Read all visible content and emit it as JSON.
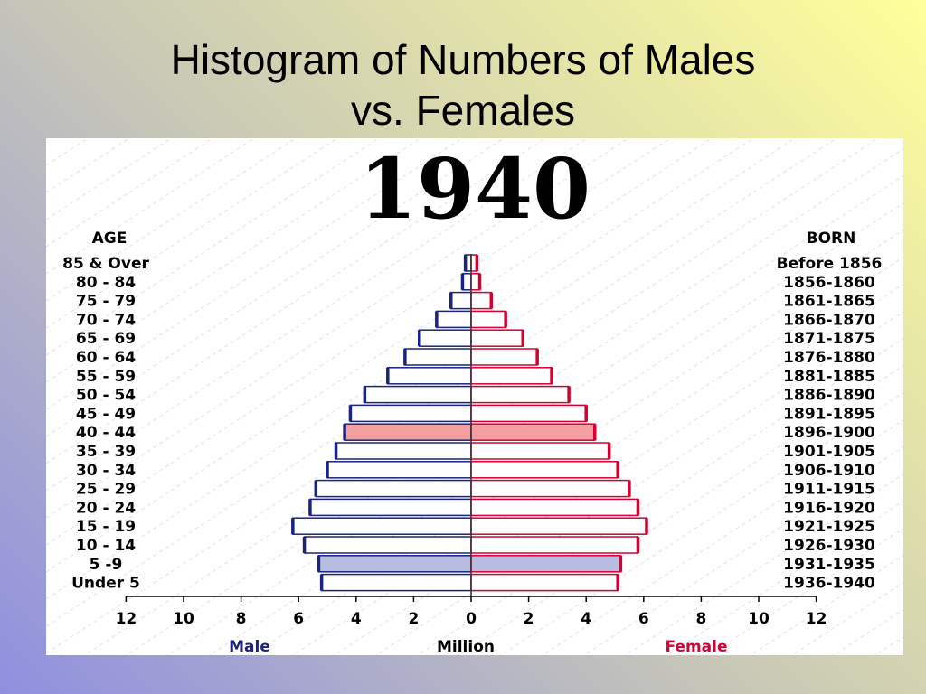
{
  "slide": {
    "title_line1": "Histogram of Numbers of Males",
    "title_line2": "vs. Females"
  },
  "chart_data": {
    "type": "bar",
    "orientation": "horizontal-pyramid",
    "year_label": "1940",
    "left_header": "AGE",
    "right_header": "BORN",
    "x_label": "Million",
    "male_label": "Male",
    "female_label": "Female",
    "male_color": "#1a237e",
    "female_color": "#d50032",
    "x_ticks": [
      12,
      10,
      8,
      6,
      4,
      2,
      0,
      2,
      4,
      6,
      8,
      10,
      12
    ],
    "xlim": [
      -12,
      12
    ],
    "categories": [
      "85 & Over",
      "80 - 84",
      "75 - 79",
      "70 - 74",
      "65 - 69",
      "60 - 64",
      "55 - 59",
      "50 - 54",
      "45 - 49",
      "40 - 44",
      "35 - 39",
      "30 - 34",
      "25 - 29",
      "20 - 24",
      "15 - 19",
      "10 - 14",
      "5 -9",
      "Under 5"
    ],
    "born": [
      "Before 1856",
      "1856-1860",
      "1861-1865",
      "1866-1870",
      "1871-1875",
      "1876-1880",
      "1881-1885",
      "1886-1890",
      "1891-1895",
      "1896-1900",
      "1901-1905",
      "1906-1910",
      "1911-1915",
      "1916-1920",
      "1921-1925",
      "1926-1930",
      "1931-1935",
      "1936-1940"
    ],
    "series": [
      {
        "name": "Male",
        "values": [
          0.2,
          0.3,
          0.7,
          1.2,
          1.8,
          2.3,
          2.9,
          3.7,
          4.2,
          4.4,
          4.7,
          5.0,
          5.4,
          5.6,
          6.2,
          5.8,
          5.3,
          5.2
        ]
      },
      {
        "name": "Female",
        "values": [
          0.2,
          0.3,
          0.7,
          1.2,
          1.8,
          2.3,
          2.8,
          3.4,
          4.0,
          4.3,
          4.8,
          5.1,
          5.5,
          5.8,
          6.1,
          5.8,
          5.2,
          5.1
        ]
      }
    ],
    "highlighted_rows": [
      "40 - 44",
      "5 -9"
    ],
    "highlight_colors": {
      "40 - 44": "#f4a0a0",
      "5 -9": "#b8bce0"
    },
    "grid": "dashed diagonal background"
  }
}
